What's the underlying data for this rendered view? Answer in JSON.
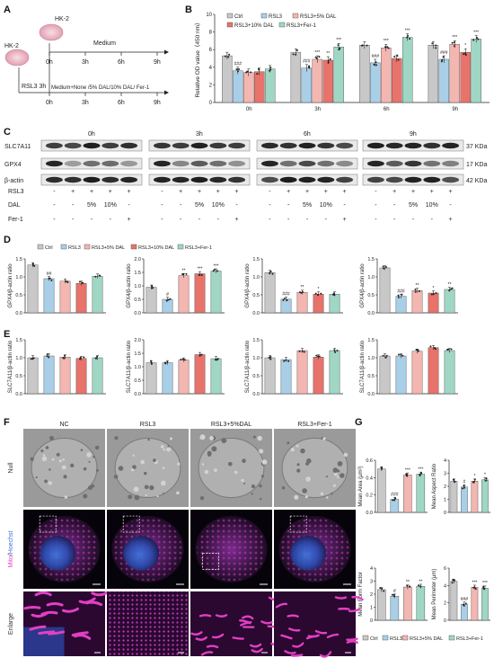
{
  "panel_labels": {
    "A": "A",
    "B": "B",
    "C": "C",
    "D": "D",
    "E": "E",
    "F": "F",
    "G": "G"
  },
  "colors": {
    "ctrl": "#c8c8c8",
    "rsl3": "#a9cfe8",
    "dal5": "#f4b6b0",
    "dal10": "#e8736b",
    "fer1": "#9fd7c4",
    "mito": "#e23fc4",
    "nuclei": "#3f6fd6"
  },
  "panel_a": {
    "cell_top": "HK-2",
    "cell_left": "HK-2",
    "medium": "Medium",
    "treatment_left": "RSL3 3h",
    "treatment": "Medium+None /5% DAL/10% DAL/ Fer-1",
    "timepoints": [
      "0h",
      "3h",
      "6h",
      "9h"
    ]
  },
  "panel_c": {
    "timepoints": [
      "0h",
      "3h",
      "6h",
      "9h"
    ],
    "proteins": [
      "SLC7A11",
      "GPX4",
      "β-actin"
    ],
    "sizes": [
      "37 KDa",
      "17 KDa",
      "42 KDa"
    ],
    "row_labels": [
      "RSL3",
      "DAL",
      "Fer-1"
    ],
    "rsl3": [
      "-",
      "+",
      "+",
      "+",
      "+"
    ],
    "dal": [
      "-",
      "-",
      "5%",
      "10%",
      "-"
    ],
    "fer1": [
      "-",
      "-",
      "-",
      "-",
      "+"
    ]
  },
  "panel_f": {
    "columns": [
      "NC",
      "RSL3",
      "RSL3+5%DAL",
      "RSL3+Fer-1"
    ],
    "row_null": "Null",
    "row_mito": "Mito",
    "row_sep": "/",
    "row_hoechst": "Hoechst",
    "row_enlarge": "Enlarge"
  },
  "chart_data": [
    {
      "id": "B",
      "type": "bar",
      "ylabel": "Relative OD value（450 nm）",
      "ylim": [
        0,
        10
      ],
      "yticks": [
        "0",
        "2",
        "4",
        "6",
        "8",
        "10"
      ],
      "categories": [
        "0h",
        "3h",
        "6h",
        "9h"
      ],
      "legend": [
        "Ctrl",
        "RSL3",
        "RSL3+5% DAL",
        "RSL3+10% DAL",
        "RSL3+Fer-1"
      ],
      "series": [
        {
          "name": "Ctrl",
          "values": [
            5.3,
            5.7,
            6.5,
            6.5
          ]
        },
        {
          "name": "RSL3",
          "values": [
            3.6,
            3.9,
            4.5,
            4.9
          ]
        },
        {
          "name": "RSL3+5% DAL",
          "values": [
            3.4,
            4.9,
            6.2,
            6.6
          ]
        },
        {
          "name": "RSL3+10% DAL",
          "values": [
            3.5,
            4.8,
            5.0,
            5.7
          ]
        },
        {
          "name": "RSL3+Fer-1",
          "values": [
            3.8,
            6.3,
            7.4,
            7.2
          ]
        }
      ],
      "annotations": [
        {
          "bar": [
            0,
            1
          ],
          "text": "###"
        },
        {
          "bar": [
            1,
            1
          ],
          "text": "###"
        },
        {
          "bar": [
            1,
            2
          ],
          "text": "***"
        },
        {
          "bar": [
            1,
            3
          ],
          "text": "**"
        },
        {
          "bar": [
            1,
            4
          ],
          "text": "***"
        },
        {
          "bar": [
            2,
            1
          ],
          "text": "###"
        },
        {
          "bar": [
            2,
            2
          ],
          "text": "***"
        },
        {
          "bar": [
            2,
            4
          ],
          "text": "***"
        },
        {
          "bar": [
            3,
            1
          ],
          "text": "###"
        },
        {
          "bar": [
            3,
            2
          ],
          "text": "***"
        },
        {
          "bar": [
            3,
            3
          ],
          "text": "*"
        },
        {
          "bar": [
            3,
            4
          ],
          "text": "***"
        }
      ]
    },
    {
      "id": "D1",
      "type": "bar",
      "ylabel": "GPX4/β-actin ratio",
      "ylim": [
        0,
        1.5
      ],
      "yticks": [
        "0.0",
        "0.5",
        "1.0",
        "1.5"
      ],
      "legend": [
        "Ctrl",
        "RSL3",
        "RSL3+5% DAL",
        "RSL3+10% DAL",
        "RSL3+Fer-1"
      ],
      "values": [
        1.33,
        0.95,
        0.88,
        0.82,
        1.02
      ],
      "annotations": [
        {
          "i": 1,
          "text": "##"
        }
      ]
    },
    {
      "id": "D2",
      "type": "bar",
      "ylabel": "GPX4/β-actin ratio",
      "ylim": [
        0,
        2.0
      ],
      "yticks": [
        "0.0",
        "0.5",
        "1.0",
        "1.5",
        "2.0"
      ],
      "values": [
        0.95,
        0.5,
        1.38,
        1.45,
        1.55
      ],
      "annotations": [
        {
          "i": 1,
          "text": "#"
        },
        {
          "i": 2,
          "text": "**"
        },
        {
          "i": 3,
          "text": "***"
        },
        {
          "i": 4,
          "text": "***"
        }
      ]
    },
    {
      "id": "D3",
      "type": "bar",
      "ylabel": "GPX4/β-actin ratio",
      "ylim": [
        0,
        1.5
      ],
      "yticks": [
        "0.0",
        "0.5",
        "1.0",
        "1.5"
      ],
      "values": [
        1.12,
        0.38,
        0.57,
        0.52,
        0.52
      ],
      "annotations": [
        {
          "i": 1,
          "text": "###"
        },
        {
          "i": 2,
          "text": "**"
        },
        {
          "i": 3,
          "text": "*"
        }
      ]
    },
    {
      "id": "D4",
      "type": "bar",
      "ylabel": "GPX4/β-actin ratio",
      "ylim": [
        0,
        1.5
      ],
      "yticks": [
        "0.0",
        "0.5",
        "1.0",
        "1.5"
      ],
      "values": [
        1.25,
        0.46,
        0.62,
        0.55,
        0.65
      ],
      "annotations": [
        {
          "i": 1,
          "text": "###"
        },
        {
          "i": 2,
          "text": "**"
        },
        {
          "i": 3,
          "text": "*"
        },
        {
          "i": 4,
          "text": "**"
        }
      ]
    },
    {
      "id": "E1",
      "type": "bar",
      "ylabel": "SLC7A11/β-actin ratio",
      "ylim": [
        0,
        1.5
      ],
      "yticks": [
        "0.0",
        "0.5",
        "1.0",
        "1.5"
      ],
      "values": [
        1.0,
        1.05,
        1.02,
        0.98,
        1.0
      ],
      "annotations": []
    },
    {
      "id": "E2",
      "type": "bar",
      "ylabel": "SLC7A11/β-actin ratio",
      "ylim": [
        0,
        2.0
      ],
      "yticks": [
        "0.0",
        "0.5",
        "1.0",
        "1.5",
        "2.0"
      ],
      "values": [
        1.15,
        1.15,
        1.25,
        1.45,
        1.3
      ],
      "annotations": []
    },
    {
      "id": "E3",
      "type": "bar",
      "ylabel": "SLC7A11/β-actin ratio",
      "ylim": [
        0,
        1.5
      ],
      "yticks": [
        "0.0",
        "0.5",
        "1.0",
        "1.5"
      ],
      "values": [
        1.0,
        0.95,
        1.2,
        1.02,
        1.2
      ],
      "annotations": []
    },
    {
      "id": "E4",
      "type": "bar",
      "ylabel": "SLC7A11/β-actin ratio",
      "ylim": [
        0,
        1.5
      ],
      "yticks": [
        "0.0",
        "0.5",
        "1.0",
        "1.5"
      ],
      "values": [
        1.05,
        1.05,
        1.18,
        1.28,
        1.2
      ],
      "annotations": []
    },
    {
      "id": "G1",
      "type": "bar",
      "ylabel": "Mean Area (μm²)",
      "ylim": [
        0,
        0.6
      ],
      "yticks": [
        "0.0",
        "0.2",
        "0.4",
        "0.6"
      ],
      "legend": [
        "Ctrl",
        "RSL3",
        "RSL3+5% DAL",
        "RSL3+Fer-1"
      ],
      "values": [
        0.5,
        0.15,
        0.43,
        0.44
      ],
      "annotations": [
        {
          "i": 1,
          "text": "###"
        },
        {
          "i": 2,
          "text": "***"
        },
        {
          "i": 3,
          "text": "***"
        }
      ]
    },
    {
      "id": "G2",
      "type": "bar",
      "ylabel": "Mean Aspect Ratio",
      "ylim": [
        0,
        4
      ],
      "yticks": [
        "0",
        "1",
        "2",
        "3",
        "4"
      ],
      "values": [
        2.4,
        1.95,
        2.4,
        2.5
      ],
      "annotations": [
        {
          "i": 1,
          "text": "#"
        },
        {
          "i": 2,
          "text": "*"
        },
        {
          "i": 3,
          "text": "*"
        }
      ]
    },
    {
      "id": "G3",
      "type": "bar",
      "ylabel": "Mean Form Factor",
      "ylim": [
        0,
        4
      ],
      "yticks": [
        "0",
        "1",
        "2",
        "3",
        "4"
      ],
      "values": [
        2.35,
        1.85,
        2.55,
        2.6
      ],
      "annotations": [
        {
          "i": 1,
          "text": "#"
        },
        {
          "i": 2,
          "text": "**"
        },
        {
          "i": 3,
          "text": "**"
        }
      ]
    },
    {
      "id": "G4",
      "type": "bar",
      "ylabel": "Mean Perimeter (μm)",
      "ylim": [
        0,
        6
      ],
      "yticks": [
        "0",
        "2",
        "4",
        "6"
      ],
      "values": [
        4.5,
        1.85,
        3.8,
        3.7
      ],
      "annotations": [
        {
          "i": 1,
          "text": "###"
        },
        {
          "i": 2,
          "text": "***"
        },
        {
          "i": 3,
          "text": "***"
        }
      ]
    }
  ]
}
